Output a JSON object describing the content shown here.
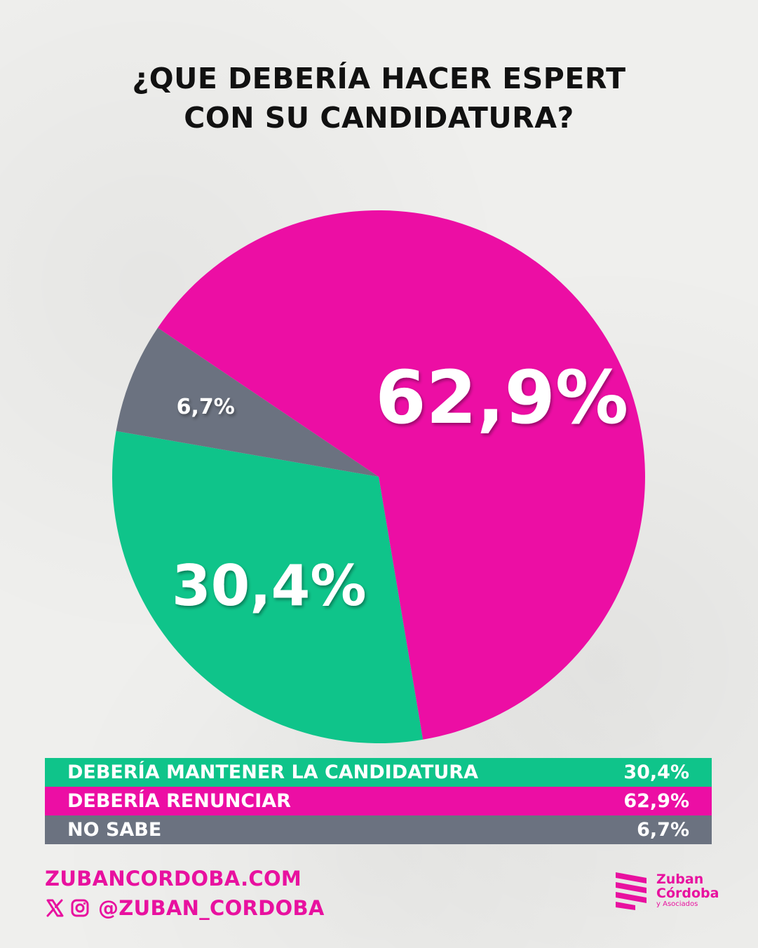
{
  "title": {
    "line1": "¿QUE DEBERÍA HACER ESPERT",
    "line2": "CON SU CANDIDATURA?"
  },
  "chart_data": {
    "type": "pie",
    "slices": [
      {
        "label": "DEBERÍA RENUNCIAR",
        "value": 62.9,
        "display": "62,9%",
        "color": "#ec0ea4"
      },
      {
        "label": "DEBERÍA MANTENER LA CANDIDATURA",
        "value": 30.4,
        "display": "30,4%",
        "color": "#0fc48a"
      },
      {
        "label": "NO SABE",
        "value": 6.7,
        "display": "6,7%",
        "color": "#6b7280"
      }
    ]
  },
  "legend": [
    {
      "label": "DEBERÍA MANTENER LA CANDIDATURA",
      "value": "30,4%",
      "color": "#0fc48a"
    },
    {
      "label": "DEBERÍA RENUNCIAR",
      "value": "62,9%",
      "color": "#ec0ea4"
    },
    {
      "label": "NO SABE",
      "value": "6,7%",
      "color": "#6b7280"
    }
  ],
  "footer": {
    "website": "ZUBANCORDOBA.COM",
    "handle": "@ZUBAN_CORDOBA",
    "icons": [
      "x-icon",
      "instagram-icon"
    ],
    "brand_name_1": "Zuban",
    "brand_name_2": "Córdoba",
    "brand_name_3": "y Asociados",
    "brand_color": "#e8119f"
  }
}
